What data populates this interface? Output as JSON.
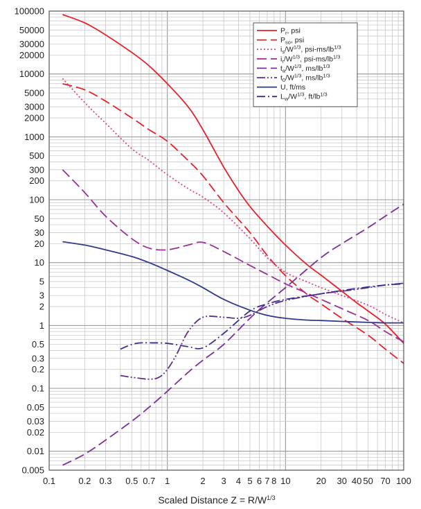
{
  "chart_data": {
    "type": "line",
    "xlabel": "Scaled Distance Z = R/W¹ᐟ³",
    "x_scale": "log",
    "y_scale": "log",
    "xlim": [
      0.1,
      100
    ],
    "ylim": [
      0.005,
      100000
    ],
    "grid": true,
    "legend_position": "top-right",
    "x_ticks": [
      {
        "value": 0.1,
        "label": "0.1"
      },
      {
        "value": 0.2,
        "label": "0.2"
      },
      {
        "value": 0.3,
        "label": "0.3"
      },
      {
        "value": 0.5,
        "label": "0.5"
      },
      {
        "value": 0.7,
        "label": "0.7"
      },
      {
        "value": 1,
        "label": "1"
      },
      {
        "value": 2,
        "label": "2"
      },
      {
        "value": 3,
        "label": "3"
      },
      {
        "value": 4,
        "label": "4"
      },
      {
        "value": 5,
        "label": "5"
      },
      {
        "value": 6,
        "label": "6"
      },
      {
        "value": 7,
        "label": "7"
      },
      {
        "value": 8,
        "label": "8"
      },
      {
        "value": 10,
        "label": "10"
      },
      {
        "value": 20,
        "label": "20"
      },
      {
        "value": 30,
        "label": "30"
      },
      {
        "value": 40,
        "label": "40"
      },
      {
        "value": 50,
        "label": "50"
      },
      {
        "value": 70,
        "label": "70"
      },
      {
        "value": 100,
        "label": "100"
      }
    ],
    "y_ticks": [
      {
        "value": 100000,
        "label": "100000"
      },
      {
        "value": 50000,
        "label": "50000"
      },
      {
        "value": 30000,
        "label": "30000"
      },
      {
        "value": 20000,
        "label": "20000"
      },
      {
        "value": 10000,
        "label": "10000"
      },
      {
        "value": 5000,
        "label": "5000"
      },
      {
        "value": 3000,
        "label": "3000"
      },
      {
        "value": 2000,
        "label": "2000"
      },
      {
        "value": 1000,
        "label": "1000"
      },
      {
        "value": 500,
        "label": "500"
      },
      {
        "value": 300,
        "label": "300"
      },
      {
        "value": 200,
        "label": "200"
      },
      {
        "value": 100,
        "label": "100"
      },
      {
        "value": 50,
        "label": "50"
      },
      {
        "value": 30,
        "label": "30"
      },
      {
        "value": 20,
        "label": "20"
      },
      {
        "value": 10,
        "label": "10"
      },
      {
        "value": 5,
        "label": "5"
      },
      {
        "value": 3,
        "label": "3"
      },
      {
        "value": 2,
        "label": "2"
      },
      {
        "value": 1,
        "label": "1"
      },
      {
        "value": 0.5,
        "label": "0.5"
      },
      {
        "value": 0.3,
        "label": "0.3"
      },
      {
        "value": 0.2,
        "label": "0.2"
      },
      {
        "value": 0.1,
        "label": "0.1"
      },
      {
        "value": 0.05,
        "label": "0.05"
      },
      {
        "value": 0.03,
        "label": "0.03"
      },
      {
        "value": 0.02,
        "label": "0.02"
      },
      {
        "value": 0.01,
        "label": "0.01"
      },
      {
        "value": 0.005,
        "label": "0.005"
      }
    ],
    "series": [
      {
        "name": "Pr, psi",
        "color": "#e8202a",
        "dash": "solid",
        "x": [
          0.13,
          0.2,
          0.3,
          0.5,
          0.7,
          1,
          1.5,
          2,
          3,
          4,
          5,
          7,
          10,
          15,
          20,
          30,
          40,
          50,
          70,
          100
        ],
        "y": [
          88000,
          65000,
          42000,
          22000,
          13500,
          7000,
          3000,
          1300,
          330,
          140,
          78,
          38,
          19,
          9.5,
          6.3,
          3.5,
          2.3,
          1.7,
          1.05,
          0.52
        ]
      },
      {
        "name": "Pso, psi",
        "color": "#e8202a",
        "dash": "longdash",
        "x": [
          0.13,
          0.2,
          0.3,
          0.5,
          0.7,
          1,
          1.5,
          2,
          3,
          5,
          7,
          10,
          15,
          20,
          30,
          50,
          70,
          100
        ],
        "y": [
          7000,
          5600,
          3700,
          2000,
          1300,
          850,
          420,
          240,
          90,
          30,
          13,
          6.2,
          3.2,
          2.2,
          1.3,
          0.7,
          0.42,
          0.25
        ]
      },
      {
        "name": "is/W1/3, psi-ms/lb1/3",
        "color": "#e0408a",
        "dash": "dotted",
        "x": [
          0.13,
          0.2,
          0.3,
          0.5,
          0.7,
          1,
          1.5,
          2,
          3,
          5,
          7,
          10,
          15,
          20,
          30,
          50,
          70,
          100
        ],
        "y": [
          8500,
          3500,
          1650,
          650,
          420,
          250,
          150,
          110,
          62,
          24,
          12,
          7,
          5,
          4,
          3,
          2.1,
          1.5,
          1.1
        ]
      },
      {
        "name": "ir/W1/3, psi-ms/lb1/3",
        "color": "#9a2e96",
        "dash": "longdash",
        "x": [
          0.13,
          0.2,
          0.3,
          0.5,
          0.7,
          1,
          1.5,
          2,
          3,
          5,
          7,
          10,
          15,
          20,
          30,
          50,
          70,
          100
        ],
        "y": [
          300,
          130,
          55,
          24,
          17,
          16,
          19,
          21,
          15,
          9,
          6.5,
          4.6,
          3.3,
          2.6,
          1.85,
          1.2,
          0.8,
          0.55
        ]
      },
      {
        "name": "ta/W1/3, ms/lb1/3",
        "color": "#7a2e9a",
        "dash": "longdash",
        "x": [
          0.13,
          0.2,
          0.3,
          0.5,
          0.7,
          1,
          1.5,
          2,
          3,
          5,
          7,
          10,
          20,
          30,
          50,
          70,
          100
        ],
        "y": [
          0.006,
          0.009,
          0.015,
          0.03,
          0.05,
          0.09,
          0.18,
          0.28,
          0.5,
          1.3,
          2.3,
          4,
          12,
          20,
          36,
          55,
          85
        ]
      },
      {
        "name": "t0/W1/3, ms/lb1/3",
        "color": "#5b2e8a",
        "dash": "dashdotdot",
        "x": [
          0.4,
          0.5,
          0.7,
          0.85,
          1,
          1.2,
          1.5,
          2,
          3,
          4,
          5,
          7,
          10,
          20,
          30,
          50,
          70,
          100
        ],
        "y": [
          0.16,
          0.15,
          0.14,
          0.15,
          0.2,
          0.35,
          0.8,
          1.35,
          1.35,
          1.3,
          1.45,
          2,
          2.5,
          3.2,
          3.5,
          4,
          4.4,
          4.7
        ]
      },
      {
        "name": "U, ft/ms",
        "color": "#2e3a8a",
        "dash": "solid",
        "x": [
          0.13,
          0.2,
          0.3,
          0.5,
          0.7,
          1,
          1.5,
          2,
          3,
          5,
          7,
          10,
          15,
          20,
          30,
          50,
          70,
          100
        ],
        "y": [
          21.5,
          19,
          16,
          12.5,
          10,
          7.5,
          5.3,
          4,
          2.6,
          1.75,
          1.45,
          1.3,
          1.22,
          1.2,
          1.16,
          1.12,
          1.1,
          1.1
        ]
      },
      {
        "name": "Lw/W1/3, ft/lb1/3",
        "color": "#3a2e8a",
        "dash": "dashdot",
        "x": [
          0.4,
          0.5,
          0.6,
          0.7,
          1,
          1.5,
          2,
          3,
          5,
          7,
          10,
          20,
          30,
          50,
          70,
          100
        ],
        "y": [
          0.42,
          0.5,
          0.53,
          0.53,
          0.52,
          0.46,
          0.44,
          0.75,
          1.7,
          2.2,
          2.6,
          3.2,
          3.6,
          4.1,
          4.4,
          4.6
        ]
      }
    ],
    "legend": [
      {
        "pre": "P",
        "sub": "r",
        "post": ", psi"
      },
      {
        "pre": "P",
        "sub": "so",
        "post": ", psi"
      },
      {
        "pre": "i",
        "sub": "s",
        "post": "/W",
        "sup": "1/3",
        "post2": ", psi-ms/lb",
        "sup2": "1/3"
      },
      {
        "pre": "i",
        "sub": "r",
        "post": "/W",
        "sup": "1/3",
        "post2": ", psi-ms/lb",
        "sup2": "1/3"
      },
      {
        "pre": "t",
        "sub": "a",
        "post": "/W",
        "sup": "1/3",
        "post2": ", ms/lb",
        "sup2": "1/3"
      },
      {
        "pre": "t",
        "sub": "0",
        "post": "/W",
        "sup": "1/3",
        "post2": ", ms/lb",
        "sup2": "1/3"
      },
      {
        "pre": "U",
        "sub": "",
        "post": ", ft/ms"
      },
      {
        "pre": "L",
        "sub": "w",
        "post": "/W",
        "sup": "1/3",
        "post2": ", ft/lb",
        "sup2": "1/3"
      }
    ]
  }
}
